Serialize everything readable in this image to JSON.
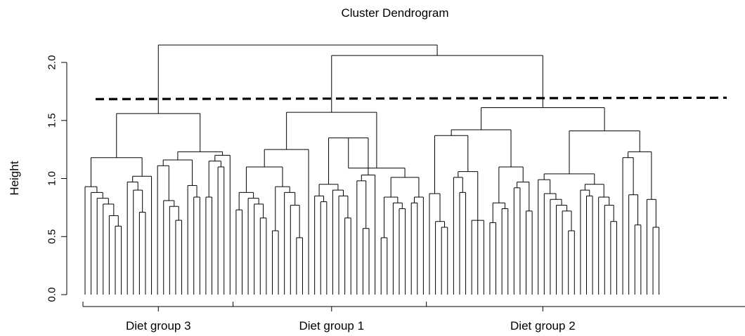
{
  "chart_data": {
    "type": "dendrogram",
    "title": "Cluster Dendrogram",
    "ylabel": "Height",
    "xlabel": "",
    "ylim": [
      0,
      2.2
    ],
    "yticks": [
      0.0,
      0.5,
      1.0,
      1.5,
      2.0
    ],
    "ytick_labels": [
      "0.0",
      "0.5",
      "1.0",
      "1.5",
      "2.0"
    ],
    "leaf_count": 110,
    "cut_height": 1.69,
    "merge_heights": {
      "root": 2.15,
      "group1_group2": 2.06,
      "group3": 1.56,
      "group1": 1.57,
      "group2": 1.61
    },
    "groups": [
      {
        "label": "Diet group 3",
        "leaves": 34
      },
      {
        "label": "Diet group 1",
        "leaves": 34
      },
      {
        "label": "Diet group 2",
        "leaves": 42
      }
    ],
    "tree": [
      [
        [
          [
            [
              0.52,
              [
                0.79,
                [
                  0.66,
                  [
                    0.73,
                    [
                      0.63,
                      [
                        0.59,
                        0.54
                      ]
                    ]
                  ]
                ]
              ]
            ],
            [
              [
                0.92,
                [
                  0.85,
                  [
                    0.71,
                    0.58
                  ]
                ]
              ],
              0.58
            ],
            1.18
          ],
          [
            [
              [
                1.06,
                [
                  0.58,
                  [
                    0.71,
                    [
                      0.64,
                      0.58
                    ]
                  ]
                ]
              ],
              [
                0.89,
                [
                  0.84,
                  0.5
                ]
              ]
            ],
            [
              [
                [
                  0.63,
                  0.84
                ],
                [
                  0.69,
                  1.1
                ]
              ],
              1.0
            ],
            1.23
          ],
          1.56
        ]
      ],
      [
        [
          [
            [
              [
                0.73,
                0.69
              ],
              [
                0.45,
                [
                  0.73,
                  [
                    0.66,
                    0.53
                  ]
                ]
              ]
            ],
            [
              [
                0.55,
                0.53
              ],
              [
                0.83,
                [
                  0.72,
                  [
                    0.49,
                    0.31
                  ]
                ]
              ]
            ],
            1.1
          ],
          1.2
        ],
        [
          [
            [
              [
                0.66,
                [
                  0.8,
                  0.72
                ]
              ],
              [
                0.58,
                [
                  0.8,
                  [
                    0.66,
                    0.38
                  ]
                ]
              ]
            ],
            [
              [
                0.93,
                [
                  0.57,
                  0.43
                ]
              ],
              0.98
            ],
            1.35
          ],
          [
            [
              [
                0.49,
                0.46
              ],
              [
                0.72,
                [
                  0.74,
                  0.45
                ]
              ]
            ],
            [
              [
                0.79,
                0.77
              ],
              0.61
            ],
            1.01
          ],
          1.09
        ],
        1.57
      ],
      [
        [
          [
            [
              0.82,
              [
                0.43,
                [
                  0.58,
                  0.45
                ]
              ]
            ],
            [
              [
                0.96,
                [
                  0.88,
                  0.45
                ]
              ],
              [
                0.69,
                0.67,
                0.65,
                0.64
              ]
            ],
            1.37
          ],
          [
            [
              [
                0.62,
                0.36
              ],
              [
                0.61,
                0.74
              ]
            ],
            [
              [
                0.92,
                0.54
              ],
              [
                0.65,
                0.75,
                0.72
              ]
            ],
            1.1
          ]
        ],
        [
          [
            [
              0.94,
              [
                0.7,
                [
                  0.69,
                  [
                    0.45,
                    [
                      0.67,
                      [
                        0.55,
                        0.42
                      ]
                    ]
                  ]
                ]
              ]
            ],
            [
              [
                0.69,
                [
                  0.85,
                  0.78
                ]
              ],
              [
                0.79,
                [
                  0.72,
                  [
                    0.63,
                    0.58
                  ]
                ]
              ]
            ]
          ],
          [
            [
              1.13,
              [
                0.81,
                [
                  0.6,
                  0.58
                ]
              ]
            ],
            [
              0.77,
              [
                0.58,
                0.38,
                0.58
              ]
            ]
          ],
          1.41
        ],
        1.61
      ]
    ]
  }
}
